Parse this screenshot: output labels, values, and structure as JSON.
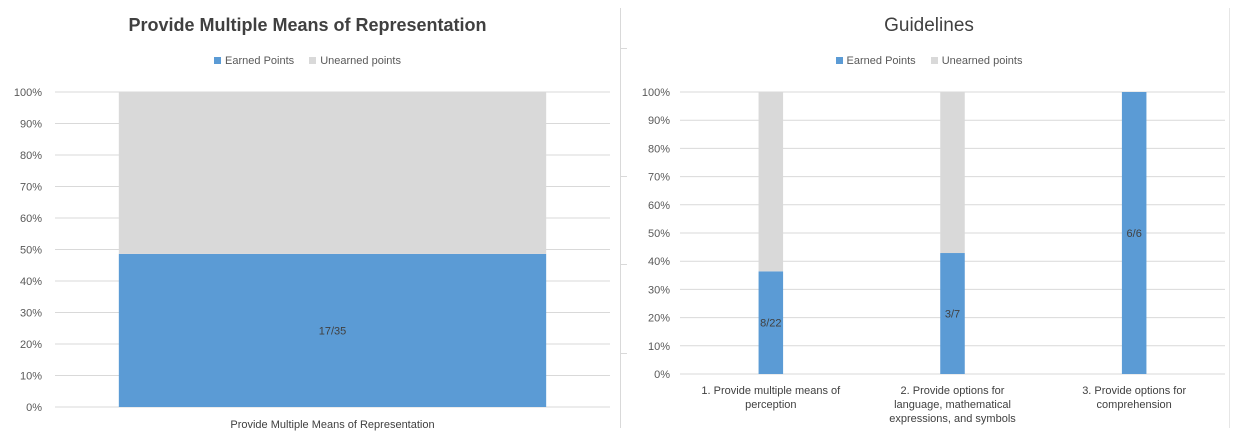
{
  "colors": {
    "earned": "#5b9bd5",
    "unearned": "#d9d9d9",
    "grid": "#d9d9d9",
    "text": "#404040"
  },
  "chart_data": [
    {
      "type": "bar",
      "stacked": true,
      "title": "Provide Multiple Means of Representation",
      "legend": {
        "position": "top",
        "entries": [
          "Earned Points",
          "Unearned points"
        ]
      },
      "categories": [
        "Provide Multiple Means of Representation"
      ],
      "series": [
        {
          "name": "Earned Points",
          "values": [
            0.486
          ]
        },
        {
          "name": "Unearned points",
          "values": [
            0.514
          ]
        }
      ],
      "data_labels": [
        "17/35"
      ],
      "ylim": [
        0,
        1
      ],
      "yticks": [
        "0%",
        "10%",
        "20%",
        "30%",
        "40%",
        "50%",
        "60%",
        "70%",
        "80%",
        "90%",
        "100%"
      ],
      "grid": true
    },
    {
      "type": "bar",
      "stacked": true,
      "title": "Guidelines",
      "legend": {
        "position": "top",
        "entries": [
          "Earned Points",
          "Unearned points"
        ]
      },
      "categories": [
        [
          "1. Provide multiple means of",
          "perception"
        ],
        [
          "2.  Provide options for",
          "language, mathematical",
          "expressions, and symbols"
        ],
        [
          "3.  Provide options for",
          "comprehension"
        ]
      ],
      "series": [
        {
          "name": "Earned Points",
          "values": [
            0.364,
            0.429,
            1.0
          ]
        },
        {
          "name": "Unearned points",
          "values": [
            0.636,
            0.571,
            0.0
          ]
        }
      ],
      "data_labels": [
        "8/22",
        "3/7",
        "6/6"
      ],
      "ylim": [
        0,
        1
      ],
      "yticks": [
        "0%",
        "10%",
        "20%",
        "30%",
        "40%",
        "50%",
        "60%",
        "70%",
        "80%",
        "90%",
        "100%"
      ],
      "grid": true
    }
  ]
}
